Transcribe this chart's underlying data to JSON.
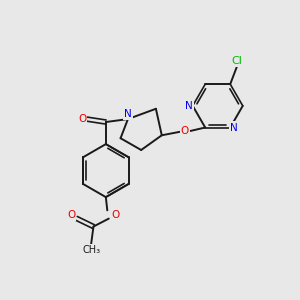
{
  "background_color": "#e8e8e8",
  "bond_color": "#1a1a1a",
  "atom_colors": {
    "N": "#0000ee",
    "O": "#ee0000",
    "Cl": "#00bb00",
    "C": "#1a1a1a"
  },
  "figsize": [
    3.0,
    3.0
  ],
  "dpi": 100
}
